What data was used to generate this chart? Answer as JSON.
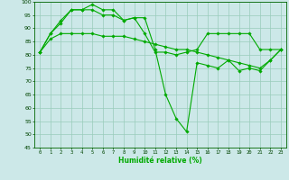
{
  "xlabel": "Humidité relative (%)",
  "background_color": "#cce8e8",
  "grid_color": "#99ccbb",
  "line_color": "#00aa00",
  "xlim": [
    -0.5,
    23.5
  ],
  "ylim": [
    45,
    100
  ],
  "yticks": [
    45,
    50,
    55,
    60,
    65,
    70,
    75,
    80,
    85,
    90,
    95,
    100
  ],
  "xticks": [
    0,
    1,
    2,
    3,
    4,
    5,
    6,
    7,
    8,
    9,
    10,
    11,
    12,
    13,
    14,
    15,
    16,
    17,
    18,
    19,
    20,
    21,
    22,
    23
  ],
  "series": [
    [
      81,
      88,
      93,
      97,
      97,
      99,
      97,
      97,
      93,
      94,
      88,
      81,
      81,
      80,
      81,
      82,
      88,
      88,
      88,
      88,
      88,
      82,
      82,
      82
    ],
    [
      81,
      88,
      92,
      97,
      97,
      97,
      95,
      95,
      93,
      94,
      94,
      82,
      65,
      56,
      51,
      77,
      76,
      75,
      78,
      74,
      75,
      74,
      78,
      82
    ],
    [
      81,
      86,
      88,
      88,
      88,
      88,
      87,
      87,
      87,
      86,
      85,
      84,
      83,
      82,
      82,
      81,
      80,
      79,
      78,
      77,
      76,
      75,
      78,
      82
    ]
  ]
}
